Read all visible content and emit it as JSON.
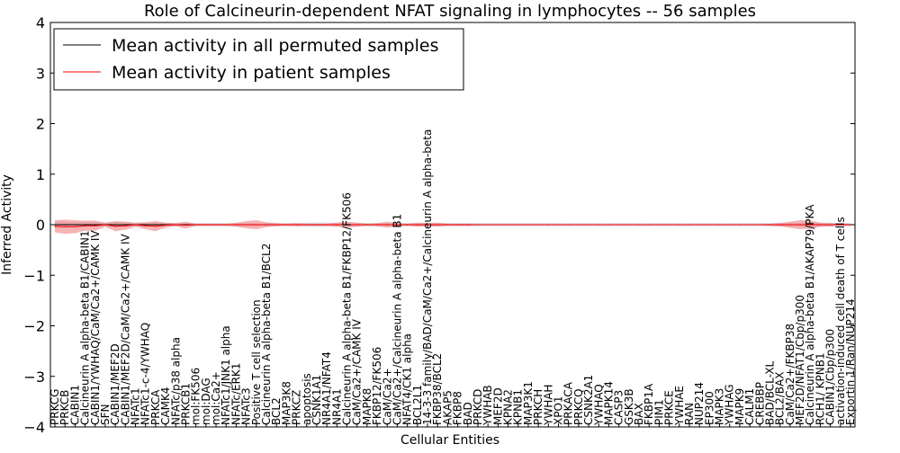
{
  "chart_data": {
    "type": "line",
    "title": "Role of Calcineurin-dependent NFAT signaling in lymphocytes -- 56 samples",
    "xlabel": "Cellular Entities",
    "ylabel": "Inferred Activity",
    "ylim": [
      -4,
      4
    ],
    "yticks": [
      -4,
      -3,
      -2,
      -1,
      0,
      1,
      2,
      3,
      4
    ],
    "ytick_labels": [
      "−4",
      "−3",
      "−2",
      "−1",
      "0",
      "1",
      "2",
      "3",
      "4"
    ],
    "grid": false,
    "legend_position": "top-left",
    "colors": {
      "permuted": "#000000",
      "patient": "#ff0000",
      "patient_band": "#f08080",
      "permuted_band": "#c8c8d8"
    },
    "categories": [
      "PRKCG",
      "PRKCB",
      "CABIN1",
      "Calcineurin A alpha-beta B1/CABIN1",
      "CABIN1/YWHAQ/CaM/Ca2+/CAMK IV",
      "SFN",
      "CABIN1/MEF2D",
      "CABIN1/MEF2D/CaM/Ca2+/CAMK IV",
      "NFATc1",
      "NFATc1-c-4/YWHAQ",
      "PRKCA",
      "CAMK4",
      "NFATc/p38 alpha",
      "PRKCB1",
      "mol:FK506",
      "mol:DAG",
      "mol:Ca2+",
      "NFATc1/JNK1 alpha",
      "NFATc/ERK1",
      "NFATc3",
      "Positive T cell selection",
      "Calcineurin A alpha-beta B1/BCL2",
      "BCL2",
      "MAP3K8",
      "PRKCZ",
      "apoptosis",
      "CSNK1A1",
      "NR4A1/NFAT4",
      "NR4A1",
      "Calcineurin A alpha-beta B1/FKBP12/FK506",
      "CaM/Ca2+/CAMK IV",
      "MAPK8",
      "FKBP12/FK506",
      "CaM/Ca2+",
      "CaM/Ca2+/Calcineurin A alpha-beta B1",
      "NFAT4/CK1 alpha",
      "BCL2L1",
      "14-3-3 family/BAD/CaM/Ca2+/Calcineurin A alpha-beta",
      "FKBP38/BCL2",
      "AKAP5",
      "FKBP8",
      "BAD",
      "PRKCD",
      "YWHAB",
      "MEF2D",
      "KPNA2",
      "KPNB1",
      "MAP3K1",
      "PRKCH",
      "YWHAH",
      "XPO1",
      "PRKACA",
      "PRKCQ",
      "CSNK2A1",
      "YWHAQ",
      "MAPK14",
      "CASP3",
      "GSK3B",
      "BAX",
      "FKBP1A",
      "PIM1",
      "PRKCE",
      "YWHAE",
      "RAN",
      "NUP214",
      "EP300",
      "MAPK3",
      "YWHAG",
      "MAPK9",
      "CALM1",
      "CREBBP",
      "BAD/BCL-XL",
      "BCL2/BAX",
      "CaM/Ca2+/FKBP38",
      "MEF2D/NFAT1/Cbp/p300",
      "Calcineurin A alpha-beta B1/AKAP79/PKA",
      "RCH1/ KPNB1",
      "CABIN1/Cbp/p300",
      "activation-induced cell death of T cells",
      "Exportin 1/Ran/NUP214"
    ],
    "series": [
      {
        "name": "Mean activity in all permuted samples",
        "values": [
          0,
          0,
          0,
          0,
          0,
          0,
          0,
          0,
          0,
          0,
          0,
          0,
          0,
          0,
          0,
          0,
          0,
          0,
          0,
          0,
          0,
          0,
          0,
          0,
          0,
          0,
          0,
          0,
          0,
          0,
          0,
          0,
          0,
          0,
          0,
          0,
          0,
          0,
          0,
          0,
          0,
          0,
          0,
          0,
          0,
          0,
          0,
          0,
          0,
          0,
          0,
          0,
          0,
          0,
          0,
          0,
          0,
          0,
          0,
          0,
          0,
          0,
          0,
          0,
          0,
          0,
          0,
          0,
          0,
          0,
          0,
          0,
          0,
          0,
          0,
          0,
          0,
          0,
          0,
          0
        ],
        "band": [
          0.06,
          0.06,
          0.05,
          0.05,
          0.05,
          0.04,
          0.05,
          0.05,
          0.04,
          0.04,
          0.04,
          0.04,
          0.03,
          0.03,
          0.03,
          0.03,
          0.03,
          0.03,
          0.03,
          0.03,
          0.03,
          0.03,
          0.03,
          0.03,
          0.03,
          0.04,
          0.04,
          0.04,
          0.04,
          0.03,
          0.03,
          0.03,
          0.03,
          0.03,
          0.03,
          0.03,
          0.03,
          0.03,
          0.03,
          0.03,
          0.03,
          0.03,
          0.03,
          0.03,
          0.03,
          0.03,
          0.03,
          0.03,
          0.03,
          0.03,
          0.03,
          0.03,
          0.03,
          0.03,
          0.03,
          0.03,
          0.03,
          0.03,
          0.03,
          0.03,
          0.03,
          0.03,
          0.03,
          0.03,
          0.03,
          0.03,
          0.03,
          0.03,
          0.03,
          0.03,
          0.03,
          0.03,
          0.04,
          0.04,
          0.04,
          0.05,
          0.04,
          0.04,
          0.03,
          0.03
        ]
      },
      {
        "name": "Mean activity in patient samples",
        "values": [
          -0.03,
          -0.04,
          -0.04,
          -0.02,
          -0.02,
          0.0,
          -0.03,
          -0.02,
          0.0,
          -0.02,
          -0.03,
          -0.01,
          0.0,
          -0.01,
          0,
          0,
          0,
          0,
          0,
          0,
          0,
          0,
          0,
          0,
          0,
          0,
          0,
          0,
          0,
          0,
          0,
          0,
          0,
          0,
          0,
          0,
          0,
          0,
          0,
          0,
          0,
          0,
          0,
          0,
          0,
          0,
          0,
          0,
          0,
          0,
          0,
          0,
          0,
          0,
          0,
          0,
          0,
          0,
          0,
          0,
          0,
          0,
          0,
          0,
          0,
          0,
          0,
          0,
          0,
          0,
          0,
          0,
          0,
          0,
          0,
          0,
          0,
          0,
          0,
          0
        ],
        "band": [
          0.12,
          0.14,
          0.13,
          0.1,
          0.1,
          0.04,
          0.1,
          0.08,
          0.04,
          0.07,
          0.1,
          0.05,
          0.03,
          0.07,
          0.02,
          0.02,
          0.02,
          0.02,
          0.04,
          0.07,
          0.09,
          0.05,
          0.03,
          0.02,
          0.03,
          0.02,
          0.02,
          0.02,
          0.04,
          0.06,
          0.04,
          0.02,
          0.03,
          0.06,
          0.03,
          0.02,
          0.04,
          0.03,
          0.04,
          0.02,
          0.02,
          0.02,
          0.01,
          0.01,
          0.01,
          0.01,
          0.01,
          0.01,
          0.01,
          0.01,
          0.01,
          0.01,
          0.01,
          0.01,
          0.01,
          0.01,
          0.01,
          0.01,
          0.01,
          0.01,
          0.01,
          0.01,
          0.01,
          0.01,
          0.01,
          0.01,
          0.01,
          0.01,
          0.01,
          0.01,
          0.01,
          0.02,
          0.03,
          0.06,
          0.09,
          0.08,
          0.04,
          0.03,
          0.02,
          0.02
        ]
      }
    ]
  }
}
